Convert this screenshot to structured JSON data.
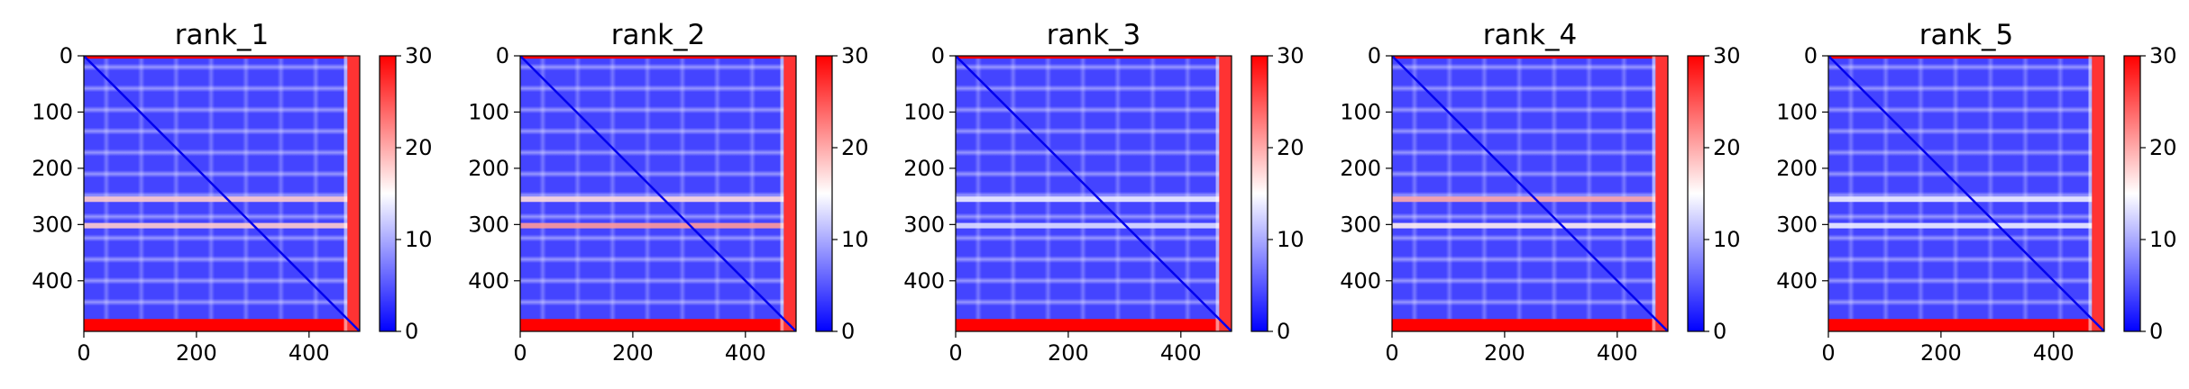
{
  "chart_data": [
    {
      "type": "heatmap",
      "title": "rank_1",
      "x_ticks": [
        0,
        200,
        400
      ],
      "y_ticks": [
        0,
        100,
        200,
        300,
        400
      ],
      "xlim": [
        0,
        490
      ],
      "ylim": [
        490,
        0
      ],
      "size": 490,
      "colorbar": {
        "ticks": [
          0,
          10,
          20,
          30
        ],
        "range": [
          0,
          30
        ],
        "colormap": "bwr"
      },
      "stripes": [
        {
          "pos": 255,
          "value": 18
        },
        {
          "pos": 302,
          "value": 18
        }
      ],
      "edge_value": 30
    },
    {
      "type": "heatmap",
      "title": "rank_2",
      "x_ticks": [
        0,
        200,
        400
      ],
      "y_ticks": [
        0,
        100,
        200,
        300,
        400
      ],
      "xlim": [
        0,
        490
      ],
      "ylim": [
        490,
        0
      ],
      "size": 490,
      "colorbar": {
        "ticks": [
          0,
          10,
          20,
          30
        ],
        "range": [
          0,
          30
        ],
        "colormap": "bwr"
      },
      "stripes": [
        {
          "pos": 255,
          "value": 17
        },
        {
          "pos": 302,
          "value": 21
        }
      ],
      "edge_value": 30
    },
    {
      "type": "heatmap",
      "title": "rank_3",
      "x_ticks": [
        0,
        200,
        400
      ],
      "y_ticks": [
        0,
        100,
        200,
        300,
        400
      ],
      "xlim": [
        0,
        490
      ],
      "ylim": [
        490,
        0
      ],
      "size": 490,
      "colorbar": {
        "ticks": [
          0,
          10,
          20,
          30
        ],
        "range": [
          0,
          30
        ],
        "colormap": "bwr"
      },
      "stripes": [
        {
          "pos": 255,
          "value": 14
        },
        {
          "pos": 302,
          "value": 13
        }
      ],
      "edge_value": 30
    },
    {
      "type": "heatmap",
      "title": "rank_4",
      "x_ticks": [
        0,
        200,
        400
      ],
      "y_ticks": [
        0,
        100,
        200,
        300,
        400
      ],
      "xlim": [
        0,
        490
      ],
      "ylim": [
        490,
        0
      ],
      "size": 490,
      "colorbar": {
        "ticks": [
          0,
          10,
          20,
          30
        ],
        "range": [
          0,
          30
        ],
        "colormap": "bwr"
      },
      "stripes": [
        {
          "pos": 255,
          "value": 20
        },
        {
          "pos": 302,
          "value": 16
        }
      ],
      "edge_value": 30
    },
    {
      "type": "heatmap",
      "title": "rank_5",
      "x_ticks": [
        0,
        200,
        400
      ],
      "y_ticks": [
        0,
        100,
        200,
        300,
        400
      ],
      "xlim": [
        0,
        490
      ],
      "ylim": [
        490,
        0
      ],
      "size": 490,
      "colorbar": {
        "ticks": [
          0,
          10,
          20,
          30
        ],
        "range": [
          0,
          30
        ],
        "colormap": "bwr"
      },
      "stripes": [
        {
          "pos": 255,
          "value": 14
        },
        {
          "pos": 302,
          "value": 14
        }
      ],
      "edge_value": 30
    }
  ]
}
